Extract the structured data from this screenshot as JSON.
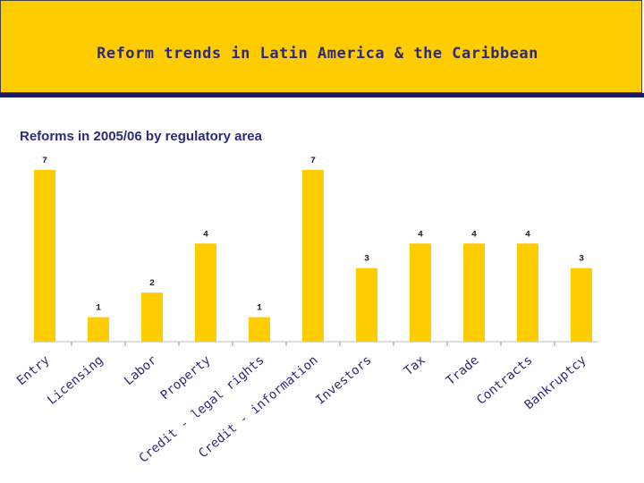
{
  "header": {
    "title": "Reform trends in Latin America & the Caribbean"
  },
  "chart_data": {
    "type": "bar",
    "title": "Reforms in 2005/06 by regulatory area",
    "categories": [
      "Entry",
      "Licensing",
      "Labor",
      "Property",
      "Credit - legal rights",
      "Credit - information",
      "Investors",
      "Tax",
      "Trade",
      "Contracts",
      "Bankruptcy"
    ],
    "values": [
      7,
      1,
      2,
      4,
      1,
      7,
      3,
      4,
      4,
      4,
      3
    ],
    "ylim": [
      0,
      7
    ],
    "xlabel": "",
    "ylabel": "",
    "bar_color": "#ffcc00"
  }
}
